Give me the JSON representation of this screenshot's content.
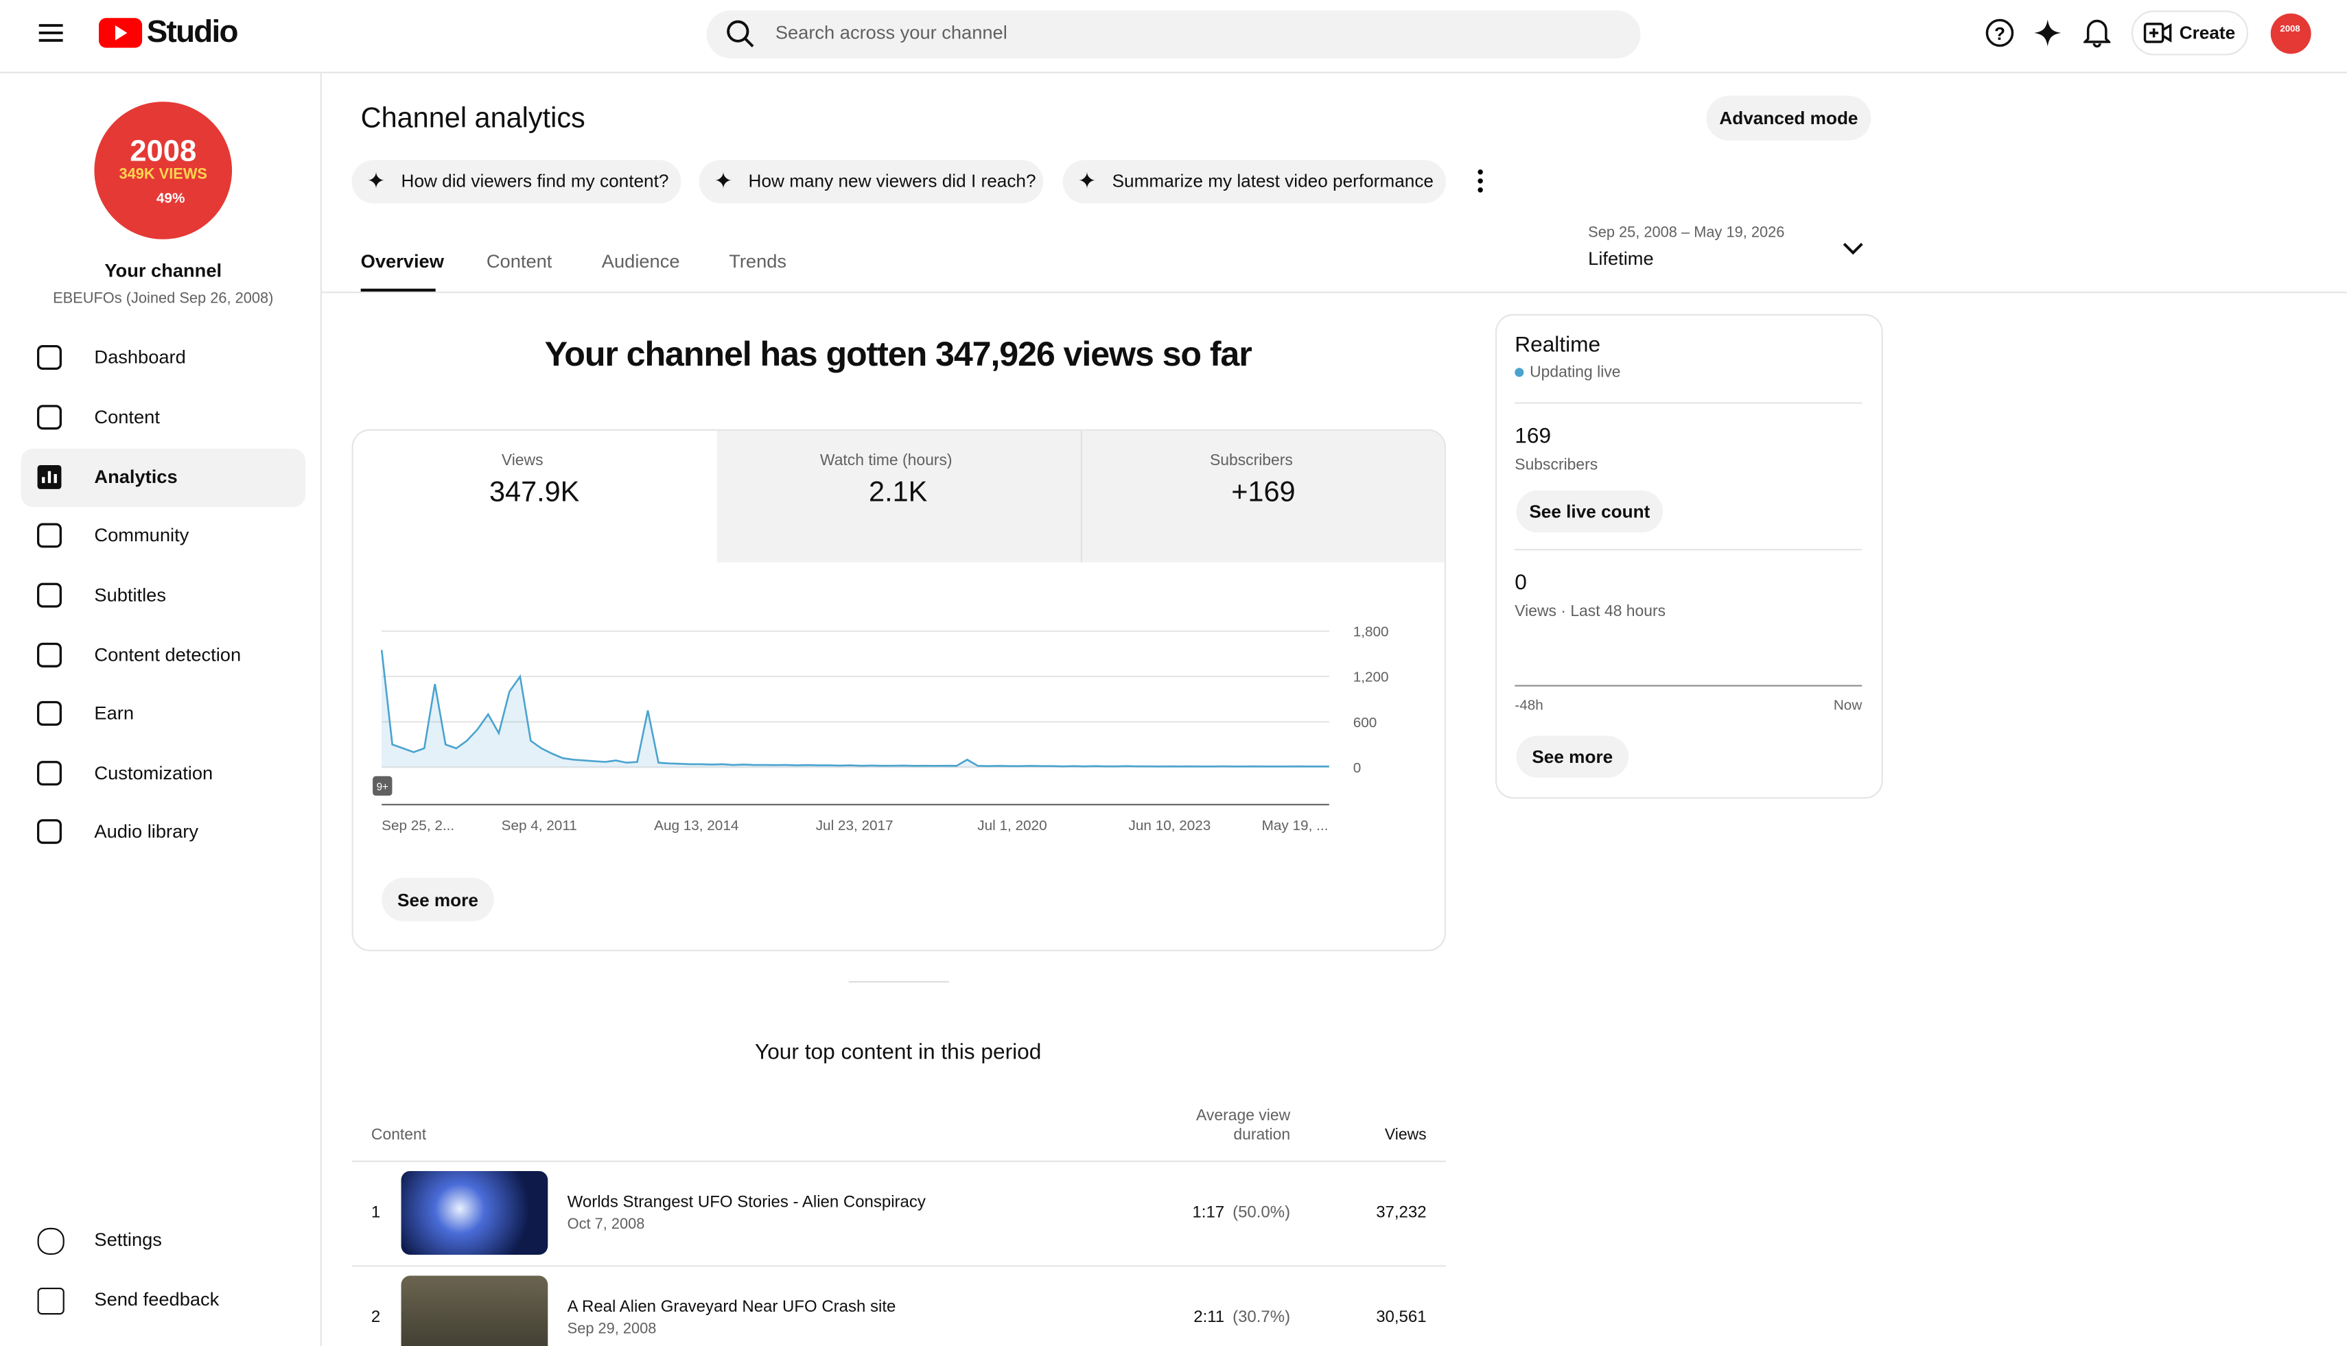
{
  "header": {
    "logo_text": "Studio",
    "search_placeholder": "Search across your channel",
    "create": "Create",
    "avatar_text": "2008"
  },
  "sidebar": {
    "badge": {
      "year": "2008",
      "views": "349K VIEWS",
      "pct": "49%"
    },
    "channel_name": "Your channel",
    "channel_sub": "EBEUFOs (Joined Sep 26, 2008)",
    "nav": [
      "Dashboard",
      "Content",
      "Analytics",
      "Community",
      "Subtitles",
      "Content detection",
      "Earn",
      "Customization",
      "Audio library"
    ],
    "footer_nav": [
      "Settings",
      "Send feedback"
    ]
  },
  "page": {
    "title": "Channel analytics",
    "advanced": "Advanced mode",
    "prompts": [
      "How did viewers find my content?",
      "How many new viewers did I reach?",
      "Summarize my latest video performance"
    ],
    "tabs": [
      "Overview",
      "Content",
      "Audience",
      "Trends"
    ],
    "date_range": "Sep 25, 2008 – May 19, 2026",
    "period": "Lifetime"
  },
  "overview": {
    "headline": "Your channel has gotten 347,926 views so far",
    "metrics": [
      {
        "label": "Views",
        "value": "347.9K"
      },
      {
        "label": "Watch time (hours)",
        "value": "2.1K"
      },
      {
        "label": "Subscribers",
        "value": "+169"
      }
    ],
    "chart": {
      "type": "line",
      "color": "#4aa3cf",
      "badge": "9+",
      "xticks": [
        "Sep 25, 2...",
        "Sep 4, 2011",
        "Aug 13, 2014",
        "Jul 23, 2017",
        "Jul 1, 2020",
        "Jun 10, 2023",
        "May 19, ..."
      ],
      "ylim": [
        0,
        1800
      ],
      "yticks": [
        0,
        600,
        {
          "value": 1200,
          "label": "1,200"
        },
        {
          "value": 1800,
          "label": "1,800"
        }
      ],
      "values": [
        1550,
        300,
        250,
        200,
        250,
        1100,
        300,
        250,
        350,
        500,
        700,
        450,
        1000,
        1200,
        350,
        250,
        180,
        120,
        100,
        90,
        80,
        70,
        90,
        60,
        70,
        750,
        60,
        50,
        45,
        40,
        40,
        35,
        40,
        30,
        35,
        30,
        30,
        28,
        30,
        25,
        28,
        25,
        25,
        22,
        25,
        20,
        22,
        20,
        20,
        22,
        18,
        20,
        18,
        20,
        18,
        100,
        18,
        15,
        18,
        15,
        15,
        18,
        15,
        15,
        12,
        15,
        12,
        15,
        12,
        12,
        15,
        12,
        12,
        10,
        12,
        10,
        12,
        10,
        10,
        12,
        10,
        10,
        12,
        10,
        10,
        10,
        12,
        10,
        10,
        10
      ]
    },
    "see_more": "See more"
  },
  "realtime": {
    "title": "Realtime",
    "status": "Updating live",
    "subs_value": "169",
    "subs_label": "Subscribers",
    "live_btn": "See live count",
    "views_value": "0",
    "views_label": "Views · Last 48 hours",
    "axis_start": "-48h",
    "axis_end": "Now",
    "see_more": "See more"
  },
  "top_content": {
    "title": "Your top content in this period",
    "col_content": "Content",
    "col_duration": "Average view duration",
    "col_views": "Views",
    "rows": [
      {
        "rank": "1",
        "title": "Worlds Strangest UFO Stories - Alien Conspiracy",
        "date": "Oct 7, 2008",
        "duration": "1:17",
        "percent": "(50.0%)",
        "views": "37,232"
      },
      {
        "rank": "2",
        "title": "A Real Alien Graveyard Near UFO Crash site",
        "date": "Sep 29, 2008",
        "duration": "2:11",
        "percent": "(30.7%)",
        "views": "30,561"
      }
    ]
  }
}
